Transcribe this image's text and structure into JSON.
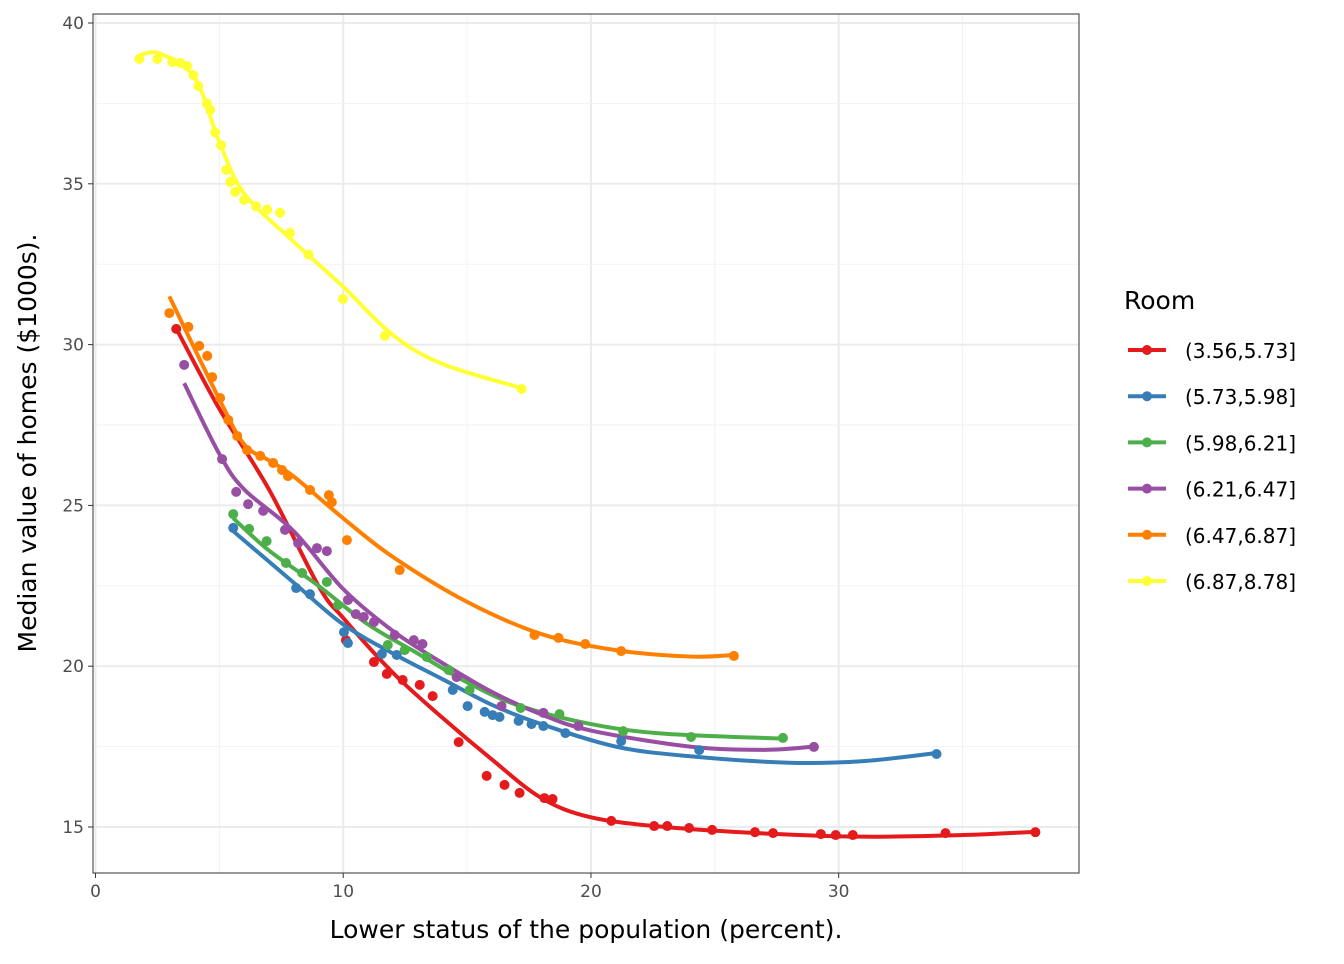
{
  "chart_data": {
    "type": "scatter",
    "title": "",
    "xlabel": "Lower status of the population (percent).",
    "ylabel": "Median value of homes ($1000s).",
    "xlim": [
      -0.1,
      39.7
    ],
    "ylim": [
      13.57,
      40.28
    ],
    "xticks": [
      0,
      10,
      20,
      30
    ],
    "yticks": [
      15,
      20,
      25,
      30,
      35,
      40
    ],
    "grid": true,
    "legend": {
      "title": "Room",
      "placement": "right"
    },
    "series": [
      {
        "name": "(3.56,5.73]",
        "color": "#E41A1C",
        "points": [
          [
            3.26,
            30.49
          ],
          [
            10.11,
            20.81
          ],
          [
            11.24,
            20.13
          ],
          [
            11.76,
            19.76
          ],
          [
            12.4,
            19.57
          ],
          [
            13.09,
            19.42
          ],
          [
            13.61,
            19.07
          ],
          [
            14.66,
            17.64
          ],
          [
            15.79,
            16.59
          ],
          [
            16.51,
            16.31
          ],
          [
            17.12,
            16.06
          ],
          [
            18.12,
            15.9
          ],
          [
            18.45,
            15.87
          ],
          [
            20.82,
            15.19
          ],
          [
            22.55,
            15.03
          ],
          [
            23.08,
            15.03
          ],
          [
            23.96,
            14.97
          ],
          [
            24.89,
            14.91
          ],
          [
            26.62,
            14.84
          ],
          [
            27.35,
            14.81
          ],
          [
            29.28,
            14.78
          ],
          [
            29.88,
            14.75
          ],
          [
            30.57,
            14.75
          ],
          [
            34.31,
            14.81
          ],
          [
            37.94,
            14.84
          ]
        ],
        "smooth": [
          [
            3.26,
            30.5
          ],
          [
            5,
            28
          ],
          [
            7,
            25.5
          ],
          [
            9,
            22.5
          ],
          [
            10,
            21.5
          ],
          [
            12,
            19.8
          ],
          [
            14,
            18.4
          ],
          [
            16,
            17.1
          ],
          [
            18,
            15.9
          ],
          [
            20,
            15.3
          ],
          [
            23,
            15.0
          ],
          [
            27,
            14.8
          ],
          [
            31,
            14.7
          ],
          [
            35,
            14.75
          ],
          [
            37.94,
            14.85
          ]
        ]
      },
      {
        "name": "(5.73,5.98]",
        "color": "#377EB8",
        "points": [
          [
            5.56,
            24.3
          ],
          [
            8.1,
            22.43
          ],
          [
            8.66,
            22.24
          ],
          [
            10.03,
            21.06
          ],
          [
            10.19,
            20.72
          ],
          [
            11.56,
            20.38
          ],
          [
            12.16,
            20.35
          ],
          [
            14.42,
            19.26
          ],
          [
            15.02,
            18.76
          ],
          [
            15.71,
            18.58
          ],
          [
            16.03,
            18.48
          ],
          [
            16.31,
            18.42
          ],
          [
            17.08,
            18.3
          ],
          [
            17.6,
            18.2
          ],
          [
            18.08,
            18.14
          ],
          [
            18.97,
            17.92
          ],
          [
            21.22,
            17.67
          ],
          [
            24.37,
            17.39
          ],
          [
            33.95,
            17.27
          ]
        ],
        "smooth": [
          [
            5.56,
            24.2
          ],
          [
            8,
            22.6
          ],
          [
            10,
            21.3
          ],
          [
            12,
            20.4
          ],
          [
            14,
            19.6
          ],
          [
            16,
            18.8
          ],
          [
            18,
            18.2
          ],
          [
            21,
            17.5
          ],
          [
            24,
            17.2
          ],
          [
            28,
            17.0
          ],
          [
            31,
            17.05
          ],
          [
            33.95,
            17.3
          ]
        ]
      },
      {
        "name": "(5.98,6.21]",
        "color": "#4DAF4A",
        "points": [
          [
            5.56,
            24.73
          ],
          [
            6.2,
            24.27
          ],
          [
            6.91,
            23.89
          ],
          [
            7.69,
            23.21
          ],
          [
            8.34,
            22.9
          ],
          [
            9.34,
            22.62
          ],
          [
            9.79,
            21.9
          ],
          [
            11.8,
            20.66
          ],
          [
            12.48,
            20.5
          ],
          [
            13.37,
            20.29
          ],
          [
            14.26,
            19.88
          ],
          [
            15.1,
            19.26
          ],
          [
            17.16,
            18.7
          ],
          [
            18.73,
            18.51
          ],
          [
            21.3,
            17.98
          ],
          [
            24.04,
            17.8
          ],
          [
            27.75,
            17.77
          ]
        ],
        "smooth": [
          [
            5.56,
            24.6
          ],
          [
            7,
            23.6
          ],
          [
            9,
            22.5
          ],
          [
            11,
            21.3
          ],
          [
            13,
            20.4
          ],
          [
            15,
            19.5
          ],
          [
            17,
            18.8
          ],
          [
            20,
            18.2
          ],
          [
            23,
            17.9
          ],
          [
            27.75,
            17.75
          ]
        ]
      },
      {
        "name": "(6.21,6.47]",
        "color": "#984EA3",
        "points": [
          [
            3.58,
            29.37
          ],
          [
            5.11,
            26.44
          ],
          [
            5.68,
            25.42
          ],
          [
            6.16,
            25.04
          ],
          [
            6.77,
            24.83
          ],
          [
            7.65,
            24.24
          ],
          [
            8.18,
            23.83
          ],
          [
            8.94,
            23.67
          ],
          [
            9.34,
            23.58
          ],
          [
            10.19,
            22.06
          ],
          [
            10.51,
            21.62
          ],
          [
            10.83,
            21.53
          ],
          [
            11.24,
            21.37
          ],
          [
            12.08,
            20.97
          ],
          [
            12.85,
            20.81
          ],
          [
            13.2,
            20.69
          ],
          [
            14.58,
            19.66
          ],
          [
            16.39,
            18.76
          ],
          [
            18.08,
            18.55
          ],
          [
            19.49,
            18.14
          ],
          [
            29.0,
            17.49
          ]
        ],
        "smooth": [
          [
            3.58,
            28.8
          ],
          [
            5,
            26.6
          ],
          [
            6,
            25.5
          ],
          [
            8,
            24.2
          ],
          [
            10,
            22.4
          ],
          [
            12,
            21.1
          ],
          [
            14,
            20.1
          ],
          [
            16,
            19.2
          ],
          [
            18,
            18.5
          ],
          [
            20,
            18.0
          ],
          [
            24,
            17.5
          ],
          [
            27,
            17.4
          ],
          [
            29,
            17.5
          ]
        ]
      },
      {
        "name": "(6.47,6.87]",
        "color": "#FF7F00",
        "points": [
          [
            2.98,
            30.98
          ],
          [
            3.75,
            30.55
          ],
          [
            4.19,
            29.96
          ],
          [
            4.51,
            29.65
          ],
          [
            4.71,
            28.99
          ],
          [
            5.03,
            28.34
          ],
          [
            5.36,
            27.66
          ],
          [
            5.72,
            27.16
          ],
          [
            6.12,
            26.72
          ],
          [
            6.65,
            26.54
          ],
          [
            7.17,
            26.32
          ],
          [
            7.53,
            26.1
          ],
          [
            7.77,
            25.91
          ],
          [
            8.66,
            25.48
          ],
          [
            9.42,
            25.32
          ],
          [
            9.54,
            25.1
          ],
          [
            10.15,
            23.92
          ],
          [
            12.28,
            22.99
          ],
          [
            17.72,
            20.97
          ],
          [
            18.69,
            20.88
          ],
          [
            19.77,
            20.69
          ],
          [
            21.22,
            20.47
          ],
          [
            25.77,
            20.32
          ]
        ],
        "smooth": [
          [
            2.98,
            31.5
          ],
          [
            5,
            28.3
          ],
          [
            6,
            26.9
          ],
          [
            7,
            26.4
          ],
          [
            8,
            25.9
          ],
          [
            10,
            24.6
          ],
          [
            12,
            23.4
          ],
          [
            15,
            22.0
          ],
          [
            18,
            21.0
          ],
          [
            21,
            20.5
          ],
          [
            24,
            20.3
          ],
          [
            25.77,
            20.35
          ]
        ]
      },
      {
        "name": "(6.87,8.78]",
        "color": "#FFFF33",
        "points": [
          [
            1.77,
            38.88
          ],
          [
            2.5,
            38.88
          ],
          [
            3.1,
            38.79
          ],
          [
            3.42,
            38.76
          ],
          [
            3.7,
            38.66
          ],
          [
            3.95,
            38.38
          ],
          [
            4.15,
            38.04
          ],
          [
            4.5,
            37.5
          ],
          [
            4.63,
            37.3
          ],
          [
            4.83,
            36.6
          ],
          [
            5.07,
            36.2
          ],
          [
            5.28,
            35.43
          ],
          [
            5.44,
            35.06
          ],
          [
            5.64,
            34.75
          ],
          [
            6.0,
            34.5
          ],
          [
            6.48,
            34.3
          ],
          [
            6.93,
            34.2
          ],
          [
            7.45,
            34.1
          ],
          [
            7.85,
            33.47
          ],
          [
            8.6,
            32.8
          ],
          [
            9.99,
            31.42
          ],
          [
            11.68,
            30.27
          ],
          [
            17.2,
            28.62
          ]
        ],
        "smooth": [
          [
            1.77,
            39.0
          ],
          [
            2.6,
            39.05
          ],
          [
            4,
            38.3
          ],
          [
            5,
            36.3
          ],
          [
            6,
            34.7
          ],
          [
            8,
            33.2
          ],
          [
            10,
            31.8
          ],
          [
            12,
            30.3
          ],
          [
            14,
            29.4
          ],
          [
            17.2,
            28.65
          ]
        ]
      }
    ]
  }
}
